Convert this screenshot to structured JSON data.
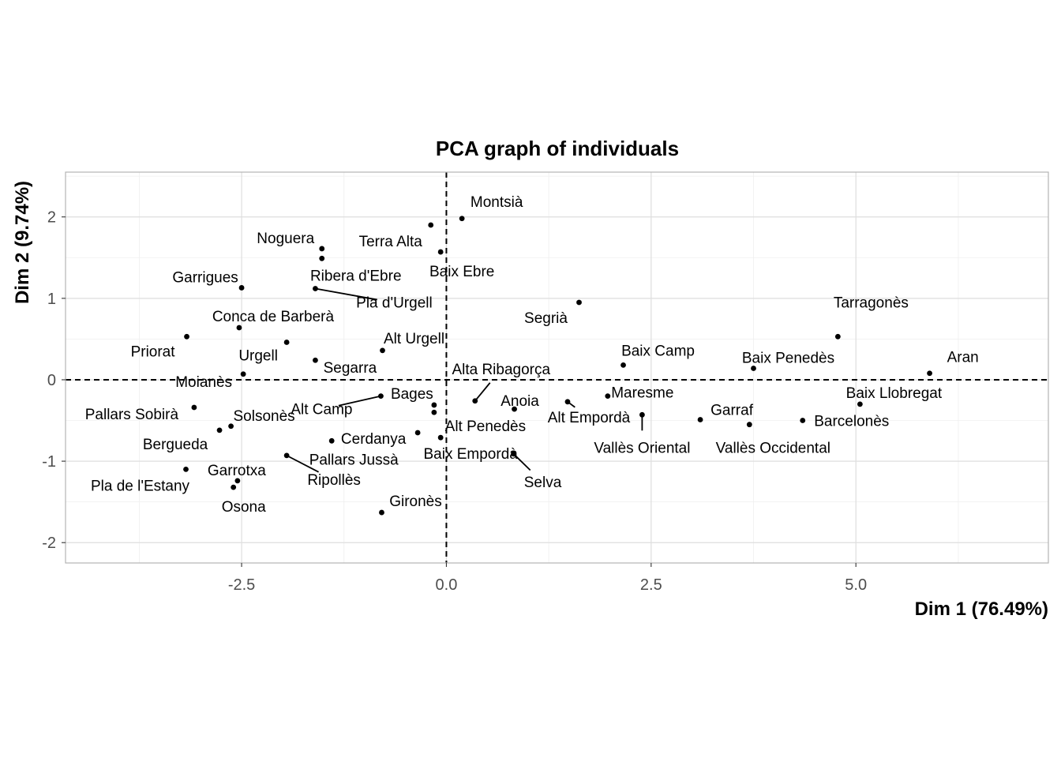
{
  "chart_data": {
    "type": "scatter",
    "title": "PCA graph of individuals",
    "xlabel": "Dim 1 (76.49%)",
    "ylabel": "Dim 2 (9.74%)",
    "xlim": [
      -4.65,
      7.35
    ],
    "ylim": [
      -2.25,
      2.55
    ],
    "x_ticks": [
      -2.5,
      0.0,
      2.5,
      5.0
    ],
    "x_tick_labels": [
      "-2.5",
      "0.0",
      "2.5",
      "5.0"
    ],
    "y_ticks": [
      -2,
      -1,
      0,
      1,
      2
    ],
    "y_tick_labels": [
      "-2",
      "-1",
      "0",
      "1",
      "2"
    ],
    "grid": true,
    "reference_lines": {
      "x": 0,
      "y": 0,
      "style": "dashed"
    },
    "points": [
      {
        "name": "Aran",
        "x": 5.9,
        "y": 0.08
      },
      {
        "name": "Tarragonès",
        "x": 4.78,
        "y": 0.53
      },
      {
        "name": "Baix Llobregat",
        "x": 5.05,
        "y": -0.3
      },
      {
        "name": "Barcelonès",
        "x": 4.35,
        "y": -0.5
      },
      {
        "name": "Baix Penedès",
        "x": 3.75,
        "y": 0.14
      },
      {
        "name": "Vallès Occidental",
        "x": 3.7,
        "y": -0.55
      },
      {
        "name": "Garraf",
        "x": 3.1,
        "y": -0.49
      },
      {
        "name": "Vallès Oriental",
        "x": 2.39,
        "y": -0.43
      },
      {
        "name": "Baix Camp",
        "x": 2.16,
        "y": 0.18
      },
      {
        "name": "Maresme",
        "x": 1.97,
        "y": -0.2
      },
      {
        "name": "Segrià",
        "x": 1.62,
        "y": 0.95
      },
      {
        "name": "Alt Empordà",
        "x": 1.48,
        "y": -0.27
      },
      {
        "name": "Anoia",
        "x": 0.83,
        "y": -0.36
      },
      {
        "name": "Selva",
        "x": 0.82,
        "y": -0.91
      },
      {
        "name": "Alta Ribagorça",
        "x": 0.35,
        "y": -0.26
      },
      {
        "name": "Montsià",
        "x": 0.19,
        "y": 1.98
      },
      {
        "name": "Baix Empordà",
        "x": -0.07,
        "y": -0.71
      },
      {
        "name": "Baix Ebre",
        "x": -0.07,
        "y": 1.57
      },
      {
        "name": "Alt Penedès",
        "x": -0.15,
        "y": -0.4
      },
      {
        "name": "Bages",
        "x": -0.15,
        "y": -0.31
      },
      {
        "name": "Terra Alta",
        "x": -0.19,
        "y": 1.9
      },
      {
        "name": "Cerdanya",
        "x": -0.35,
        "y": -0.65
      },
      {
        "name": "Alt Camp",
        "x": -0.8,
        "y": -0.2
      },
      {
        "name": "Alt Urgell",
        "x": -0.78,
        "y": 0.36
      },
      {
        "name": "Gironès",
        "x": -0.79,
        "y": -1.63
      },
      {
        "name": "Pallars Jussà",
        "x": -1.4,
        "y": -0.75
      },
      {
        "name": "Segarra",
        "x": -1.6,
        "y": 0.24
      },
      {
        "name": "Pla d'Urgell",
        "x": -1.6,
        "y": 1.12
      },
      {
        "name": "Noguera",
        "x": -1.52,
        "y": 1.61
      },
      {
        "name": "Ribera d'Ebre",
        "x": -1.52,
        "y": 1.49
      },
      {
        "name": "Ripollès",
        "x": -1.95,
        "y": -0.93
      },
      {
        "name": "Urgell",
        "x": -1.95,
        "y": 0.46
      },
      {
        "name": "Conca de Barberà",
        "x": -2.53,
        "y": 0.64
      },
      {
        "name": "Garrigues",
        "x": -2.5,
        "y": 1.13
      },
      {
        "name": "Moianès",
        "x": -2.48,
        "y": 0.07
      },
      {
        "name": "Solsonès",
        "x": -2.63,
        "y": -0.57
      },
      {
        "name": "Bergueda",
        "x": -2.77,
        "y": -0.62
      },
      {
        "name": "Garrotxa",
        "x": -2.55,
        "y": -1.24
      },
      {
        "name": "Osona",
        "x": -2.6,
        "y": -1.32
      },
      {
        "name": "Pallars Sobirà",
        "x": -3.08,
        "y": -0.34
      },
      {
        "name": "Priorat",
        "x": -3.17,
        "y": 0.53
      },
      {
        "name": "Pla de l'Estany",
        "x": -3.18,
        "y": -1.1
      }
    ]
  }
}
